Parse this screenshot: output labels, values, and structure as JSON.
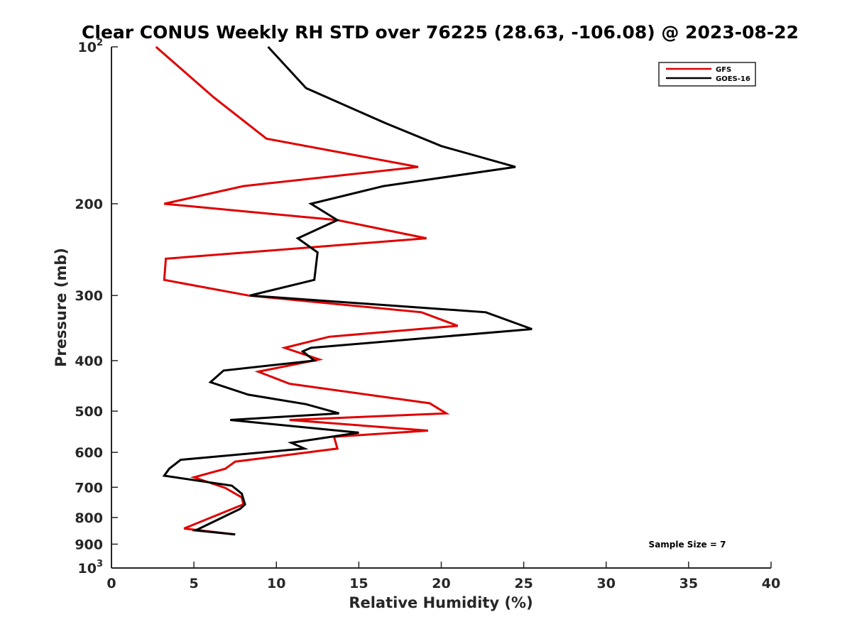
{
  "chart_data": {
    "type": "line",
    "title": "Clear CONUS Weekly RH STD over 76225 (28.63, -106.08) @ 2023-08-22",
    "xlabel": "Relative Humidity (%)",
    "ylabel": "Pressure (mb)",
    "xlim": [
      0,
      40
    ],
    "ylim": [
      100,
      1000
    ],
    "y_scale": "log",
    "y_reversed": true,
    "grid": false,
    "legend_position": "top-right",
    "annotation": "Sample Size = 7",
    "x_ticks": [
      "0",
      "5",
      "10",
      "15",
      "20",
      "25",
      "30",
      "35",
      "40"
    ],
    "x_tick_values": [
      0,
      5,
      10,
      15,
      20,
      25,
      30,
      35,
      40
    ],
    "y_ticks": [
      {
        "value": 100,
        "base": "10",
        "exp": "2"
      },
      {
        "value": 200,
        "label": "200"
      },
      {
        "value": 300,
        "label": "300"
      },
      {
        "value": 400,
        "label": "400"
      },
      {
        "value": 500,
        "label": "500"
      },
      {
        "value": 600,
        "label": "600"
      },
      {
        "value": 700,
        "label": "700"
      },
      {
        "value": 800,
        "label": "800"
      },
      {
        "value": 900,
        "label": "900"
      },
      {
        "value": 1000,
        "base": "10",
        "exp": "3"
      }
    ],
    "series": [
      {
        "name": "GFS",
        "color": "#e00000",
        "x": [
          2.7,
          6.2,
          9.4,
          18.6,
          8.0,
          3.2,
          13.7,
          19.1,
          3.3,
          3.2,
          8.3,
          18.8,
          21.0,
          13.2,
          10.5,
          12.6,
          8.9,
          10.8,
          19.3,
          20.3,
          10.8,
          19.2,
          13.5,
          13.7,
          7.5,
          6.9,
          5.0,
          6.9,
          7.9,
          8.0,
          4.4,
          7.5
        ],
        "y": [
          100,
          125,
          150,
          170,
          185,
          200,
          215,
          233,
          255,
          280,
          300,
          323,
          343,
          360,
          378,
          398,
          420,
          443,
          483,
          505,
          520,
          545,
          560,
          590,
          625,
          645,
          670,
          702,
          732,
          755,
          840,
          862
        ]
      },
      {
        "name": "GOES-16",
        "color": "#000000",
        "x": [
          9.5,
          11.8,
          16.6,
          20.0,
          24.5,
          16.5,
          12.1,
          13.7,
          11.3,
          12.5,
          12.3,
          8.4,
          22.7,
          25.5,
          12.1,
          11.6,
          12.3,
          6.8,
          6.0,
          8.3,
          11.8,
          13.8,
          7.2,
          15.0,
          10.9,
          11.7,
          4.2,
          3.5,
          3.2,
          7.3,
          7.9,
          8.1,
          7.8,
          5.1,
          7.5
        ],
        "y": [
          100,
          120,
          140,
          155,
          170,
          185,
          200,
          215,
          233,
          248,
          280,
          300,
          323,
          348,
          378,
          384,
          400,
          418,
          440,
          465,
          485,
          505,
          520,
          550,
          575,
          590,
          620,
          645,
          665,
          695,
          720,
          755,
          770,
          847,
          862
        ]
      }
    ]
  }
}
